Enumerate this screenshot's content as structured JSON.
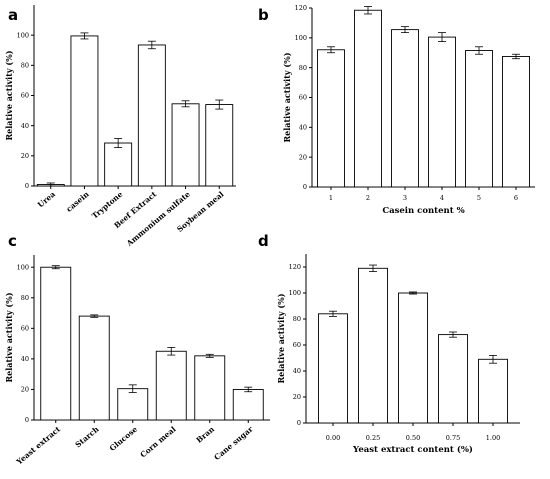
{
  "chart_data": [
    {
      "panel": "a",
      "type": "bar",
      "ylabel": "Relative activity (%)",
      "xlabel": "",
      "ylim": [
        0,
        120
      ],
      "yticks": [
        0,
        20,
        40,
        60,
        80,
        100
      ],
      "categories": [
        "Urea",
        "casein",
        "Tryptone",
        "Beef Extract",
        "Ammonium sulfate",
        "Soybean meal"
      ],
      "values": [
        1,
        99.5,
        28.5,
        93.5,
        54.5,
        54
      ],
      "errors": [
        1,
        2,
        3,
        2.5,
        2,
        3
      ]
    },
    {
      "panel": "b",
      "type": "bar",
      "ylabel": "Relative activity (%)",
      "xlabel": "Casein content %",
      "ylim": [
        0,
        120
      ],
      "yticks": [
        0,
        20,
        40,
        60,
        80,
        100,
        120
      ],
      "categories": [
        "1",
        "2",
        "3",
        "4",
        "5",
        "6"
      ],
      "values": [
        92,
        118.5,
        105.5,
        100.5,
        91.5,
        87.5
      ],
      "errors": [
        2,
        2.5,
        2,
        3,
        2.5,
        1.5
      ]
    },
    {
      "panel": "c",
      "type": "bar",
      "ylabel": "Relative activity (%)",
      "xlabel": "",
      "ylim": [
        0,
        108
      ],
      "yticks": [
        0,
        20,
        40,
        60,
        80,
        100
      ],
      "categories": [
        "Yeast extract",
        "Starch",
        "Glucose",
        "Corn meal",
        "Bran",
        "Cane sugar"
      ],
      "values": [
        100,
        68,
        20.5,
        45,
        42,
        20
      ],
      "errors": [
        1,
        0.8,
        2.5,
        2.5,
        1,
        1.5
      ]
    },
    {
      "panel": "d",
      "type": "bar",
      "ylabel": "Relative activity (%)",
      "xlabel": "Yeast extract content (%)",
      "ylim": [
        0,
        130
      ],
      "yticks": [
        0,
        20,
        40,
        60,
        80,
        100,
        120
      ],
      "categories": [
        "0.00",
        "0.25",
        "0.50",
        "0.75",
        "1.00"
      ],
      "values": [
        84,
        119,
        100,
        68,
        49
      ],
      "errors": [
        2,
        2.5,
        0.8,
        2,
        3
      ]
    }
  ]
}
